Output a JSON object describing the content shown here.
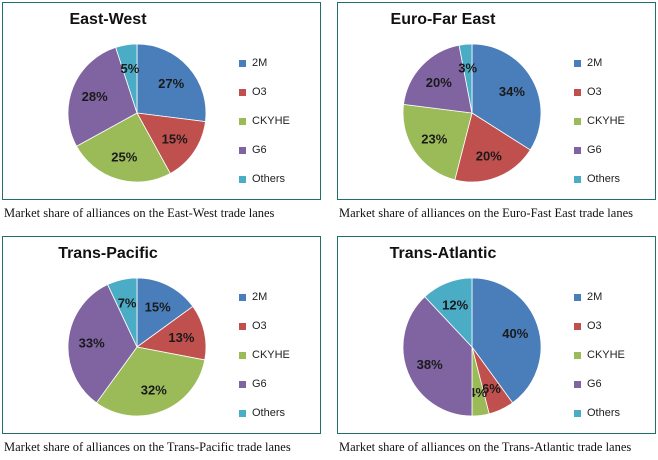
{
  "colors": {
    "2M": "#4a7ebb",
    "O3": "#c0504d",
    "CKYHE": "#9bbb59",
    "G6": "#8064a2",
    "Others": "#4bacc6"
  },
  "legend_labels": [
    "2M",
    "O3",
    "CKYHE",
    "G6",
    "Others"
  ],
  "chart_data": [
    {
      "type": "pie",
      "title": "East-West",
      "caption": "Market share of alliances on the East-West trade lanes",
      "labels": [
        "2M",
        "O3",
        "CKYHE",
        "G6",
        "Others"
      ],
      "values": [
        27,
        15,
        25,
        28,
        5
      ],
      "value_labels": [
        "27%",
        "15%",
        "25%",
        "28%",
        "5%"
      ],
      "legend_position": "right"
    },
    {
      "type": "pie",
      "title": "Euro-Far East",
      "caption": "Market share of alliances on the Euro-Fast East trade lanes",
      "labels": [
        "2M",
        "O3",
        "CKYHE",
        "G6",
        "Others"
      ],
      "values": [
        34,
        20,
        23,
        20,
        3
      ],
      "value_labels": [
        "34%",
        "20%",
        "23%",
        "20%",
        "3%"
      ],
      "legend_position": "right"
    },
    {
      "type": "pie",
      "title": "Trans-Pacific",
      "caption": "Market share of alliances on the Trans-Pacific trade lanes",
      "labels": [
        "2M",
        "O3",
        "CKYHE",
        "G6",
        "Others"
      ],
      "values": [
        15,
        13,
        32,
        33,
        7
      ],
      "value_labels": [
        "15%",
        "13%",
        "32%",
        "33%",
        "7%"
      ],
      "legend_position": "right"
    },
    {
      "type": "pie",
      "title": "Trans-Atlantic",
      "caption": "Market share of alliances on the Trans-Atlantic trade lanes",
      "labels": [
        "2M",
        "O3",
        "CKYHE",
        "G6",
        "Others"
      ],
      "values": [
        40,
        6,
        4,
        38,
        12
      ],
      "value_labels": [
        "40%",
        "6%",
        "4%",
        "38%",
        "12%"
      ],
      "legend_position": "right"
    }
  ]
}
